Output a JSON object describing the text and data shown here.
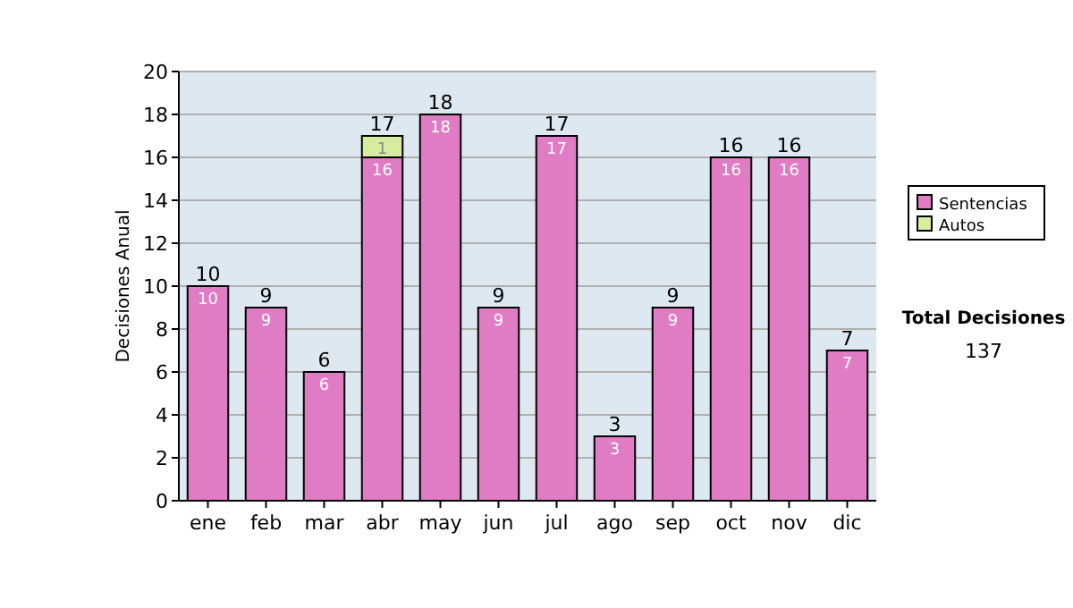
{
  "chart_data": {
    "type": "bar",
    "stacked": true,
    "ylabel": "Decisiones Anual",
    "categories": [
      "ene",
      "feb",
      "mar",
      "abr",
      "may",
      "jun",
      "jul",
      "ago",
      "sep",
      "oct",
      "nov",
      "dic"
    ],
    "series": [
      {
        "name": "Sentencias",
        "color": "#e07cc4",
        "values": [
          10,
          9,
          6,
          16,
          18,
          9,
          17,
          3,
          9,
          16,
          16,
          7
        ]
      },
      {
        "name": "Autos",
        "color": "#d8eca0",
        "values": [
          null,
          null,
          null,
          1,
          null,
          null,
          null,
          null,
          null,
          null,
          null,
          null
        ]
      }
    ],
    "ylim": [
      0,
      20
    ],
    "yticks": [
      0,
      2,
      4,
      6,
      8,
      10,
      12,
      14,
      16,
      18,
      20
    ],
    "grid": "y",
    "legend": "right",
    "data_labels": true,
    "totals": [
      "10",
      "9",
      "6",
      "17",
      "18",
      "9",
      "17",
      "3",
      "9",
      "16",
      "16",
      "7"
    ],
    "annotations": [
      "Total Decisiones",
      "137"
    ]
  }
}
